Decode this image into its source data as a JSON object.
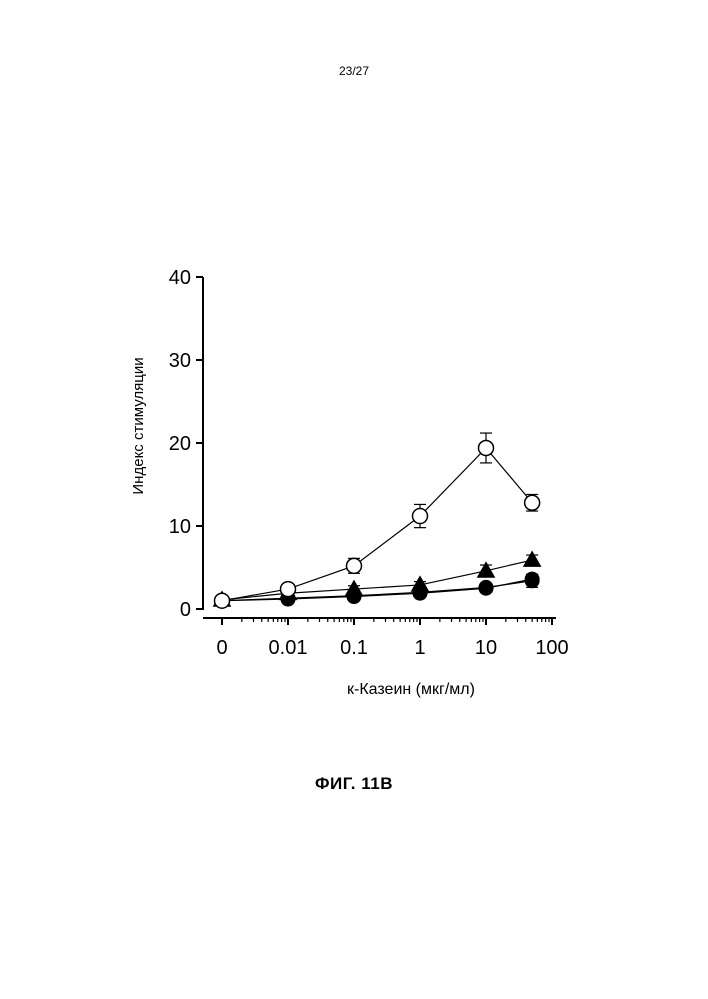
{
  "page": {
    "page_number": "23/27",
    "figure_caption": "ФИГ. 11В"
  },
  "chart_data": {
    "type": "line",
    "title": "",
    "xlabel": "к-Казеин (мкг/мл)",
    "ylabel": "Индекс стимуляции",
    "x_scale": "log",
    "x_tick_labels": [
      "0",
      "0.01",
      "0.1",
      "1",
      "10",
      "100"
    ],
    "y_ticks": [
      0,
      10,
      20,
      30,
      40
    ],
    "ylim": [
      0,
      40
    ],
    "grid": false,
    "legend": "none",
    "x": [
      0,
      0.01,
      0.1,
      1,
      10,
      50
    ],
    "series": [
      {
        "marker": "open-circle",
        "values": [
          1.0,
          2.4,
          5.2,
          11.2,
          19.4,
          12.8
        ],
        "errors": [
          0.3,
          0.4,
          0.9,
          1.4,
          1.8,
          1.0
        ]
      },
      {
        "marker": "filled-triangle",
        "values": [
          1.1,
          1.9,
          2.4,
          2.9,
          4.6,
          5.9
        ],
        "errors": [
          0.2,
          0.3,
          0.4,
          0.4,
          0.7,
          0.6
        ]
      },
      {
        "marker": "filled-circle",
        "values": [
          1.0,
          1.3,
          1.6,
          2.0,
          2.6,
          3.4
        ],
        "errors": [
          0.2,
          0.3,
          0.3,
          0.3,
          0.4,
          0.8
        ]
      },
      {
        "marker": "filled-circle",
        "values": [
          1.0,
          1.2,
          1.5,
          1.9,
          2.5,
          3.6
        ],
        "errors": [
          0.2,
          0.2,
          0.3,
          0.3,
          0.4,
          0.6
        ]
      }
    ]
  }
}
